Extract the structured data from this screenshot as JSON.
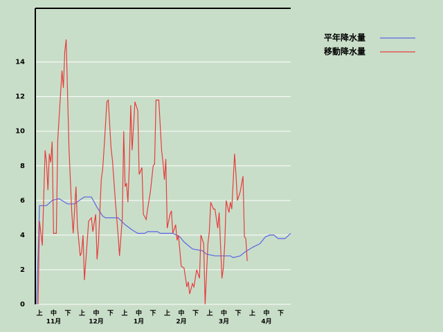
{
  "chart_data": {
    "type": "line",
    "dekad_labels": [
      "上",
      "中",
      "下",
      "上",
      "中",
      "下",
      "上",
      "中",
      "下",
      "上",
      "中",
      "下",
      "上",
      "中",
      "下",
      "上",
      "中",
      "下"
    ],
    "month_labels": [
      "11月",
      "12月",
      "1月",
      "2月",
      "3月",
      "4月"
    ],
    "xlim": [
      0,
      182
    ],
    "ylim": [
      0,
      17.1
    ],
    "yticks": [
      0,
      2,
      4,
      6,
      8,
      10,
      12,
      14
    ],
    "grid": true,
    "series": [
      {
        "name": "平年降水量",
        "color": "#5a64e6",
        "x": [
          1,
          3,
          8,
          12,
          17,
          21,
          23,
          28,
          33,
          35,
          40,
          44,
          48,
          50,
          59,
          64,
          69,
          73,
          78,
          80,
          87,
          89,
          98,
          103,
          106,
          112,
          119,
          122,
          128,
          139,
          141,
          146,
          149,
          155,
          160,
          164,
          167,
          170,
          173,
          178,
          182
        ],
        "values": [
          0,
          5.7,
          5.7,
          6.0,
          6.1,
          5.9,
          5.8,
          5.8,
          6.1,
          6.2,
          6.2,
          5.6,
          5.1,
          5.0,
          5.0,
          4.6,
          4.3,
          4.1,
          4.1,
          4.2,
          4.2,
          4.1,
          4.1,
          3.9,
          3.6,
          3.2,
          3.1,
          2.9,
          2.8,
          2.8,
          2.7,
          2.8,
          3.0,
          3.3,
          3.5,
          3.9,
          4.0,
          4.0,
          3.8,
          3.8,
          4.1
        ]
      },
      {
        "name": "移動降水量",
        "color": "#e63c3c",
        "x": [
          2,
          3,
          5,
          7,
          8,
          9,
          10,
          11,
          12,
          13,
          15,
          16,
          19,
          20,
          21,
          22,
          24,
          26,
          27,
          29,
          30,
          32,
          33,
          34,
          35,
          36,
          38,
          40,
          41,
          43,
          44,
          45,
          47,
          48,
          49,
          51,
          52,
          54,
          55,
          57,
          59,
          60,
          62,
          63,
          64,
          65,
          66,
          67,
          68,
          69,
          71,
          73,
          74,
          76,
          77,
          79,
          80,
          82,
          84,
          85,
          86,
          88,
          90,
          91,
          92,
          93,
          94,
          96,
          97,
          98,
          100,
          101,
          102,
          104,
          106,
          108,
          109,
          110,
          112,
          113,
          115,
          117,
          118,
          120,
          121,
          123,
          124,
          125,
          127,
          128,
          130,
          131,
          133,
          134,
          135,
          136,
          138,
          139,
          140,
          142,
          143,
          144,
          146,
          148,
          149,
          150,
          151
        ],
        "values": [
          0,
          4.8,
          3.4,
          8.9,
          8.2,
          6.6,
          8.7,
          8.2,
          9.4,
          4.1,
          4.1,
          9.5,
          13.5,
          12.5,
          14.6,
          15.3,
          9,
          5.3,
          4.1,
          6.8,
          4.5,
          2.8,
          3,
          4,
          1.4,
          2.5,
          4.8,
          5,
          4.2,
          5.2,
          2.6,
          3.5,
          7.2,
          7.8,
          9,
          11.7,
          11.8,
          9,
          8.3,
          6,
          4,
          2.8,
          5,
          10,
          6.8,
          7,
          5.9,
          8,
          11.5,
          8.9,
          11.7,
          11.2,
          7.5,
          7.9,
          5.2,
          4.9,
          5.5,
          6.5,
          8,
          8.1,
          11.8,
          11.8,
          8.9,
          8.2,
          7.2,
          8.4,
          4.4,
          5.2,
          5.4,
          4.1,
          4.6,
          3.7,
          4,
          2.2,
          2.1,
          1,
          1.3,
          0.6,
          1.2,
          1,
          2,
          1.5,
          4,
          3.5,
          0,
          3.5,
          4.2,
          5.9,
          5.5,
          5.5,
          4.4,
          5.3,
          1.5,
          2.1,
          3.5,
          6,
          5.3,
          5.9,
          5.5,
          8.7,
          7.5,
          6,
          6.5,
          7.4,
          3.9,
          3.8,
          2.5
        ]
      }
    ]
  }
}
